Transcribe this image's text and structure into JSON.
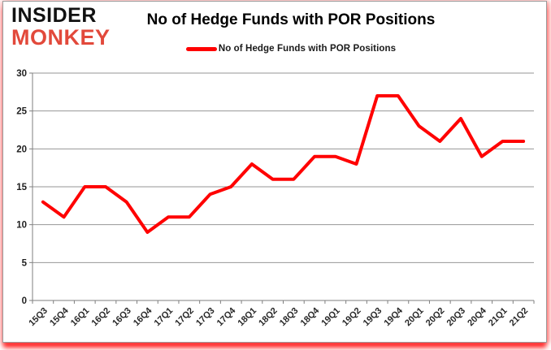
{
  "logo": {
    "line1": "INSIDER",
    "line2": "MONKEY"
  },
  "header": {
    "title": "No of Hedge Funds with POR Positions"
  },
  "legend": {
    "label": "No of Hedge Funds with POR Positions",
    "line_color": "#ff0000"
  },
  "colors": {
    "series_red": "#ff0000",
    "logo_red": "#e2493b",
    "gridline": "#969696",
    "axis": "#7f7f7f",
    "label_text": "#262626",
    "frame_glow_red": "#ff0000"
  },
  "chart_data": {
    "type": "line",
    "title": "No of Hedge Funds with POR Positions",
    "categories": [
      "15Q3",
      "15Q4",
      "16Q1",
      "16Q2",
      "16Q3",
      "16Q4",
      "17Q1",
      "17Q2",
      "17Q3",
      "17Q4",
      "18Q1",
      "18Q2",
      "18Q3",
      "18Q4",
      "19Q1",
      "19Q2",
      "19Q3",
      "19Q4",
      "20Q1",
      "20Q2",
      "20Q3",
      "20Q4",
      "21Q1",
      "21Q2"
    ],
    "series": [
      {
        "name": "No of Hedge Funds with POR Positions",
        "color": "#ff0000",
        "values": [
          13,
          11,
          15,
          15,
          13,
          9,
          11,
          11,
          14,
          15,
          18,
          16,
          16,
          19,
          19,
          18,
          27,
          27,
          23,
          21,
          24,
          19,
          21,
          21
        ]
      }
    ],
    "xlabel": "",
    "ylabel": "",
    "ylim": [
      0,
      30
    ],
    "yticks": [
      0,
      5,
      10,
      15,
      20,
      25,
      30
    ],
    "grid": true,
    "legend_position": "top-center"
  }
}
